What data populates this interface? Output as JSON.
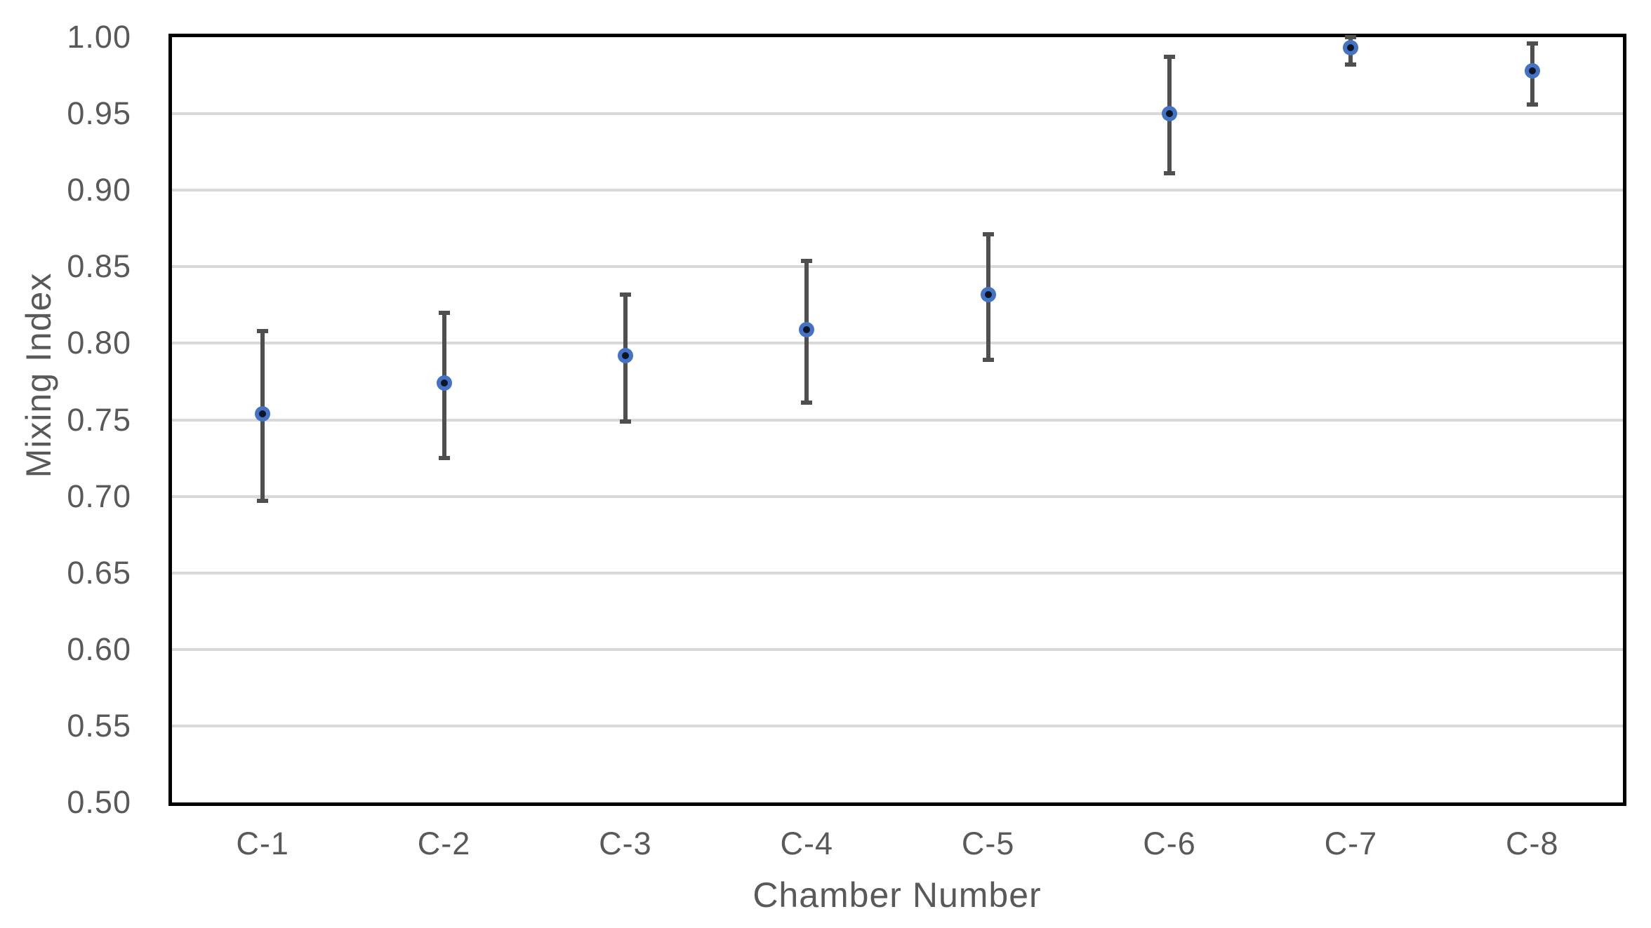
{
  "chart_data": {
    "type": "scatter",
    "title": "",
    "xlabel": "Chamber Number",
    "ylabel": "Mixing Index",
    "categories": [
      "C-1",
      "C-2",
      "C-3",
      "C-4",
      "C-5",
      "C-6",
      "C-7",
      "C-8"
    ],
    "series": [
      {
        "name": "Mixing Index",
        "values": [
          0.754,
          0.774,
          0.792,
          0.809,
          0.832,
          0.95,
          0.993,
          0.978
        ],
        "error_upper": [
          0.808,
          0.82,
          0.832,
          0.854,
          0.871,
          0.987,
          1.0,
          0.996
        ],
        "error_lower": [
          0.697,
          0.725,
          0.749,
          0.761,
          0.789,
          0.911,
          0.982,
          0.956
        ]
      }
    ],
    "ylim": [
      0.5,
      1.0
    ],
    "ytick_step": 0.05,
    "ytick_labels": [
      "0.50",
      "0.55",
      "0.60",
      "0.65",
      "0.70",
      "0.75",
      "0.80",
      "0.85",
      "0.90",
      "0.95",
      "1.00"
    ],
    "grid": true,
    "legend_position": "none",
    "marker": "circle-with-dark-center",
    "error_bars": "vertical-with-caps"
  },
  "colors": {
    "marker_fill": "#4472c4",
    "marker_center": "#0e1626",
    "error_bar": "#4f4f4f",
    "gridline": "#d9d9d9",
    "axis_text": "#595959",
    "axis_line": "#000000",
    "background": "#ffffff"
  }
}
